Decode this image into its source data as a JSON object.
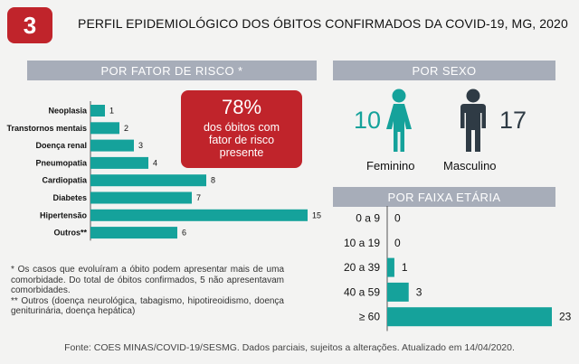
{
  "badge_number": "3",
  "title": "PERFIL EPIDEMIOLÓGICO DOS ÓBITOS CONFIRMADOS DA COVID-19, MG, 2020",
  "risk_section": {
    "header": "POR FATOR DE RISCO *",
    "callout_pct": "78%",
    "callout_text": "dos óbitos com fator de risco presente"
  },
  "sex_section": {
    "header": "POR SEXO",
    "female_count": "10",
    "female_label": "Feminino",
    "male_count": "17",
    "male_label": "Masculino",
    "female_color": "#15a29b",
    "male_color": "#2f3b45"
  },
  "age_section": {
    "header": "POR FAIXA ETÁRIA"
  },
  "footnotes": {
    "note1": "* Os casos que evoluíram a óbito podem apresentar mais de uma comorbidade. Do total de óbitos confirmados, 5 não apresentavam comorbidades.",
    "note2": "** Outros (doença neurológica, tabagismo, hipotireoidismo, doença geniturinária, doença hepática)"
  },
  "source": "Fonte: COES MINAS/COVID-19/SESMG. Dados parciais, sujeitos a alterações. Atualizado em 14/04/2020.",
  "chart_data": [
    {
      "type": "bar",
      "orientation": "horizontal",
      "title": "POR FATOR DE RISCO *",
      "categories": [
        "Neoplasia",
        "Transtornos mentais",
        "Doença renal",
        "Pneumopatia",
        "Cardiopatia",
        "Diabetes",
        "Hipertensão",
        "Outros**"
      ],
      "values": [
        1,
        2,
        3,
        4,
        8,
        7,
        15,
        6
      ],
      "xlim": [
        0,
        15
      ],
      "bar_color": "#15a29b",
      "grid": false
    },
    {
      "type": "bar",
      "orientation": "horizontal",
      "title": "POR FAIXA ETÁRIA",
      "categories": [
        "0 a 9",
        "10 a 19",
        "20 a 39",
        "40 a 59",
        "≥ 60"
      ],
      "values": [
        0,
        0,
        1,
        3,
        23
      ],
      "xlim": [
        0,
        23
      ],
      "bar_color": "#15a29b",
      "grid": false
    }
  ]
}
